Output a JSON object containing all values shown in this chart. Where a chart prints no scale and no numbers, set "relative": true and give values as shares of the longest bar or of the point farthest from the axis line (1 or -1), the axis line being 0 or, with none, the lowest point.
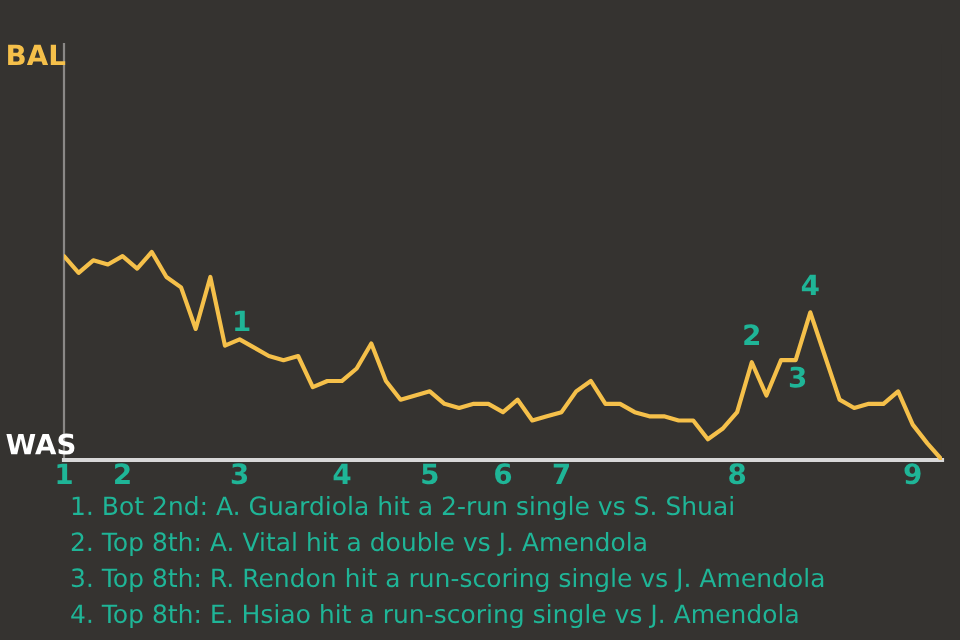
{
  "chart_data": {
    "type": "line",
    "relative": true,
    "categories": [
      "1",
      null,
      null,
      null,
      "2",
      null,
      null,
      null,
      null,
      null,
      null,
      null,
      "3",
      null,
      null,
      null,
      null,
      null,
      null,
      "4",
      null,
      null,
      null,
      null,
      null,
      "5",
      null,
      null,
      null,
      null,
      "6",
      null,
      null,
      null,
      "7",
      null,
      null,
      null,
      null,
      null,
      null,
      null,
      null,
      null,
      null,
      null,
      "8",
      null,
      null,
      null,
      null,
      null,
      null,
      null,
      null,
      null,
      null,
      null,
      "9",
      null,
      null
    ],
    "series": [
      {
        "color": "#f5c04a",
        "values": [
          0.98,
          0.9,
          0.96,
          0.94,
          0.98,
          0.92,
          1,
          0.88,
          0.83,
          0.63,
          0.88,
          0.55,
          0.58,
          0.54,
          0.5,
          0.48,
          0.5,
          0.35,
          0.38,
          0.38,
          0.44,
          0.56,
          0.38,
          0.29,
          0.31,
          0.33,
          0.27,
          0.25,
          0.27,
          0.27,
          0.23,
          0.29,
          0.19,
          0.21,
          0.23,
          0.33,
          0.38,
          0.27,
          0.27,
          0.23,
          0.21,
          0.21,
          0.19,
          0.19,
          0.1,
          0.15,
          0.23,
          0.47,
          0.31,
          0.48,
          0.48,
          0.71,
          0.5,
          0.29,
          0.25,
          0.27,
          0.27,
          0.33,
          0.17,
          0.08,
          0
        ]
      }
    ],
    "annotations": [
      {
        "text": "BAL"
      },
      {
        "text": "WAS"
      },
      {
        "text": "1",
        "y": 0.55
      },
      {
        "text": "2",
        "y": 0.47
      },
      {
        "text": "3",
        "y": 0.48
      },
      {
        "text": "4",
        "y": 0.71
      },
      "1. Bot 2nd: A. Guardiola hit a 2-run single vs S. Shuai",
      "2. Top 8th: A. Vital hit a double vs J. Amendola",
      "3. Top 8th: R. Rendon hit a run-scoring single vs J. Amendola",
      "4. Top 8th: E. Hsiao hit a run-scoring single vs J. Amendola"
    ]
  }
}
